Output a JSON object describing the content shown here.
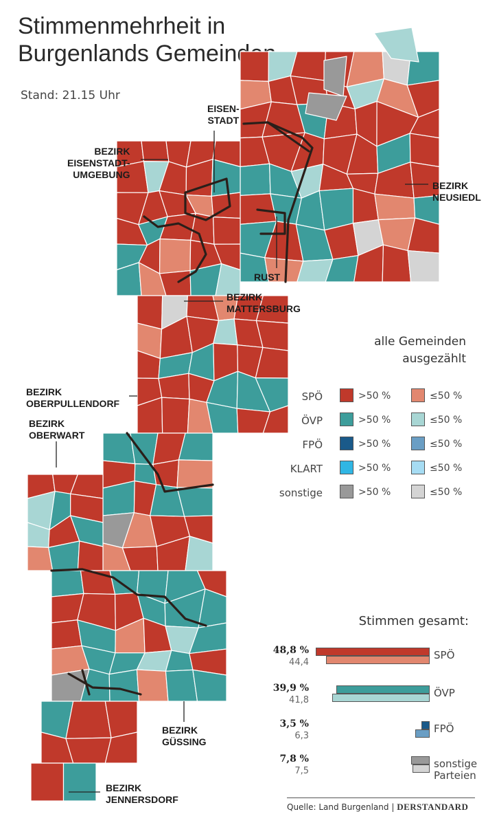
{
  "title": "Stimmenmehrheit in\nBurgenlands Gemeinden",
  "stand": "Stand: 21.15 Uhr",
  "status": "alle Gemeinden\nausgezählt",
  "colors": {
    "spo_over": "#c0392b",
    "spo_under": "#e2876f",
    "ovp_over": "#3d9d9b",
    "ovp_under": "#a8d6d4",
    "fpo_over": "#1a5a8a",
    "fpo_under": "#6a9ec4",
    "klart_over": "#30b6e4",
    "klart_under": "#a6dcf3",
    "sonst_over": "#999999",
    "sonst_under": "#d4d4d4",
    "border": "#2a1f1a"
  },
  "districts": [
    "EISEN-\nSTADT",
    "BEZIRK\nEISENSTADT-\nUMGEBUNG",
    "BEZIRK\nNEUSIEDL",
    "RUST",
    "BEZIRK\nMATTERSBURG",
    "BEZIRK\nOBERPULLENDORF",
    "BEZIRK\nOBERWART",
    "BEZIRK\nGÜSSING",
    "BEZIRK\nJENNERSDORF"
  ],
  "legend": {
    "over": ">50 %",
    "under": "≤50 %",
    "rows": [
      {
        "name": "SPÖ",
        "over_color": "#c0392b",
        "under_color": "#e2876f"
      },
      {
        "name": "ÖVP",
        "over_color": "#3d9d9b",
        "under_color": "#a8d6d4"
      },
      {
        "name": "FPÖ",
        "over_color": "#1a5a8a",
        "under_color": "#6a9ec4"
      },
      {
        "name": "KLART",
        "over_color": "#30b6e4",
        "under_color": "#a6dcf3"
      },
      {
        "name": "sonstige",
        "over_color": "#999999",
        "under_color": "#d4d4d4"
      }
    ]
  },
  "totals": {
    "title": "Stimmen gesamt:",
    "items": [
      {
        "party": "SPÖ",
        "pct": "48,8 %",
        "prev": "44,4",
        "value": 48.8,
        "prev_value": 44.4,
        "color": "#c0392b",
        "prev_color": "#e2876f"
      },
      {
        "party": "ÖVP",
        "pct": "39,9 %",
        "prev": "41,8",
        "value": 39.9,
        "prev_value": 41.8,
        "color": "#3d9d9b",
        "prev_color": "#a8d6d4"
      },
      {
        "party": "FPÖ",
        "pct": "3,5 %",
        "prev": "6,3",
        "value": 3.5,
        "prev_value": 6.3,
        "color": "#1a5a8a",
        "prev_color": "#6a9ec4"
      },
      {
        "party": "sonstige\nParteien",
        "pct": "7,8 %",
        "prev": "7,5",
        "value": 7.8,
        "prev_value": 7.5,
        "color": "#999999",
        "prev_color": "#d4d4d4"
      }
    ]
  },
  "source": "Quelle: Land Burgenland",
  "brand": "DERSTANDARD"
}
